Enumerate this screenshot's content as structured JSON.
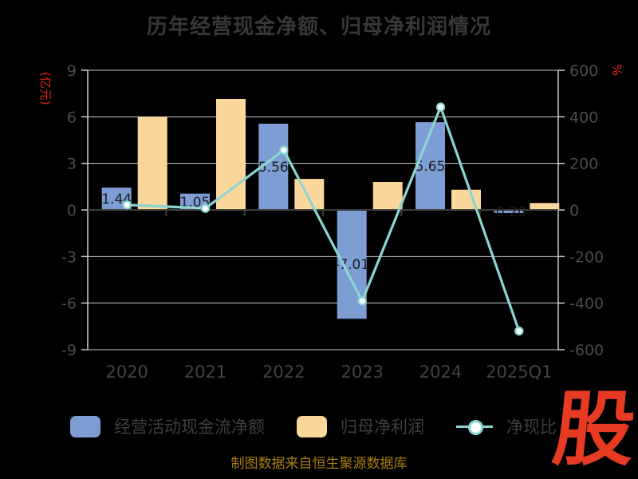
{
  "title": "历年经营现金净额、归母净利润情况",
  "source": "制图数据来自恒生聚源数据库",
  "logo": "股",
  "colors": {
    "background": "#000000",
    "accent_red": "#e02318",
    "logo_red": "#e73a23",
    "source_gold": "#a87d12",
    "grid": "#cdcdcd",
    "tick_text": "#4b4b4b"
  },
  "chart_data": {
    "type": "bar+line",
    "title": "历年经营现金净额、归母净利润情况",
    "categories": [
      "2020",
      "2021",
      "2022",
      "2023",
      "2024",
      "2025Q1"
    ],
    "series": [
      {
        "name": "经营活动现金流净额",
        "type": "bar",
        "axis": "left",
        "color": "#7d9dd4",
        "values": [
          1.44,
          1.05,
          5.56,
          -7.01,
          5.65,
          -0.2
        ],
        "labels": [
          "1.44",
          "1.05",
          "5.56",
          "-7.01",
          "5.65",
          "-0.20"
        ]
      },
      {
        "name": "归母净利润",
        "type": "bar",
        "axis": "left",
        "color": "#fcd79c",
        "values": [
          6.0,
          7.15,
          2.0,
          1.8,
          1.3,
          0.45
        ]
      },
      {
        "name": "净现比",
        "type": "line",
        "axis": "right",
        "color": "#8bd6d0",
        "values": [
          22,
          7,
          257,
          -391,
          442,
          -520
        ]
      }
    ],
    "left_axis": {
      "label": "(亿元)",
      "min": -9,
      "max": 9,
      "ticks": [
        9,
        6,
        3,
        0,
        -3,
        -6,
        -9
      ]
    },
    "right_axis": {
      "label": "%",
      "min": -600,
      "max": 600,
      "ticks": [
        600,
        400,
        200,
        0,
        -200,
        -400,
        -600
      ]
    },
    "grid": true,
    "legend_position": "bottom"
  }
}
